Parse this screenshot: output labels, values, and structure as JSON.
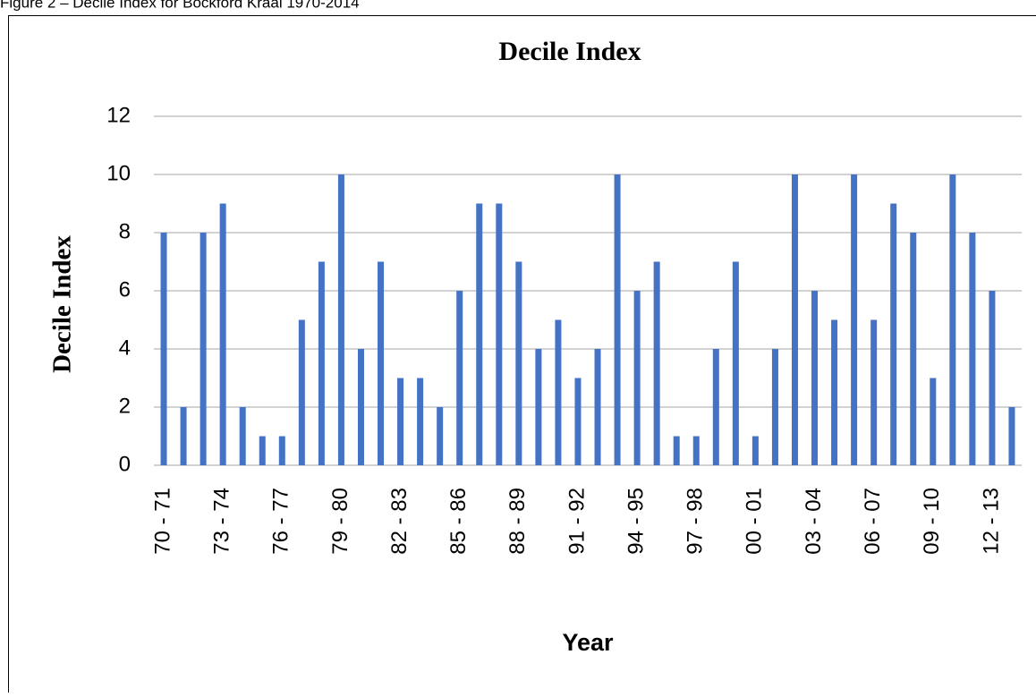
{
  "caption": "Figure 2 – Decile Index for Bockford Kraal 1970-2014",
  "chart_data": {
    "type": "bar",
    "title": "Decile Index",
    "x_label": "Year",
    "y_label": "Decile Index",
    "categories": [
      "70 - 71",
      null,
      null,
      "73 - 74",
      null,
      null,
      "76 - 77",
      null,
      null,
      "79 - 80",
      null,
      null,
      "82 - 83",
      null,
      null,
      "85 - 86",
      null,
      null,
      "88 - 89",
      null,
      null,
      "91 - 92",
      null,
      null,
      "94 - 95",
      null,
      null,
      "97 - 98",
      null,
      null,
      "00 - 01",
      null,
      null,
      "03 - 04",
      null,
      null,
      "06 - 07",
      null,
      null,
      "09 - 10",
      null,
      null,
      "12 - 13",
      null
    ],
    "values": [
      8,
      2,
      8,
      9,
      2,
      1,
      1,
      5,
      7,
      10,
      4,
      7,
      3,
      3,
      2,
      6,
      9,
      9,
      7,
      4,
      5,
      3,
      4,
      10,
      6,
      7,
      1,
      1,
      4,
      7,
      1,
      4,
      10,
      6,
      5,
      10,
      5,
      9,
      8,
      3,
      10,
      8,
      6,
      2
    ],
    "color": "#4472c4",
    "ylim": [
      0,
      12
    ],
    "yticks": [
      0,
      2,
      4,
      6,
      8,
      10,
      12
    ],
    "grid": true
  }
}
